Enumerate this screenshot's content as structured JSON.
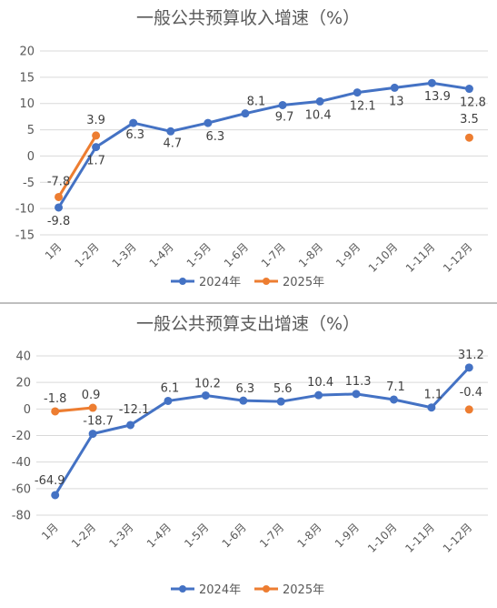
{
  "colors": {
    "s2024": "#4472C4",
    "s2025": "#ED7D31",
    "grid": "#D9D9D9",
    "divider": "#BFBFBF"
  },
  "chart_data": [
    {
      "type": "line",
      "title": "一般公共预算收入增速（%）",
      "categories": [
        "1月",
        "1-2月",
        "1-3月",
        "1-4月",
        "1-5月",
        "1-6月",
        "1-7月",
        "1-8月",
        "1-9月",
        "1-10月",
        "1-11月",
        "1-12月"
      ],
      "series": [
        {
          "name": "2024年",
          "values": [
            -9.8,
            1.7,
            6.3,
            4.7,
            6.3,
            8.1,
            9.7,
            10.4,
            12.1,
            13,
            13.9,
            12.8
          ]
        },
        {
          "name": "2025年",
          "values": [
            -7.8,
            3.9,
            null,
            null,
            null,
            null,
            null,
            null,
            null,
            null,
            null,
            3.5
          ]
        }
      ],
      "yticks": [
        "20",
        "15",
        "10",
        "5",
        "0",
        "-5",
        "-10",
        "-15"
      ],
      "ylim": [
        -15,
        20
      ],
      "legend": "bottom",
      "grid": true
    },
    {
      "type": "line",
      "title": "一般公共预算支出增速（%）",
      "categories": [
        "1月",
        "1-2月",
        "1-3月",
        "1-4月",
        "1-5月",
        "1-6月",
        "1-7月",
        "1-8月",
        "1-9月",
        "1-10月",
        "1-11月",
        "1-12月"
      ],
      "series": [
        {
          "name": "2024年",
          "values": [
            -64.9,
            -18.7,
            -12.1,
            6.1,
            10.2,
            6.3,
            5.6,
            10.4,
            11.3,
            7.1,
            1.1,
            31.2
          ]
        },
        {
          "name": "2025年",
          "values": [
            -1.8,
            0.9,
            null,
            null,
            null,
            null,
            null,
            null,
            null,
            null,
            null,
            -0.4
          ]
        }
      ],
      "yticks": [
        "40",
        "20",
        "0",
        "-20",
        "-40",
        "-60",
        "-80"
      ],
      "ylim": [
        -80,
        40
      ],
      "legend": "bottom",
      "grid": true
    }
  ]
}
